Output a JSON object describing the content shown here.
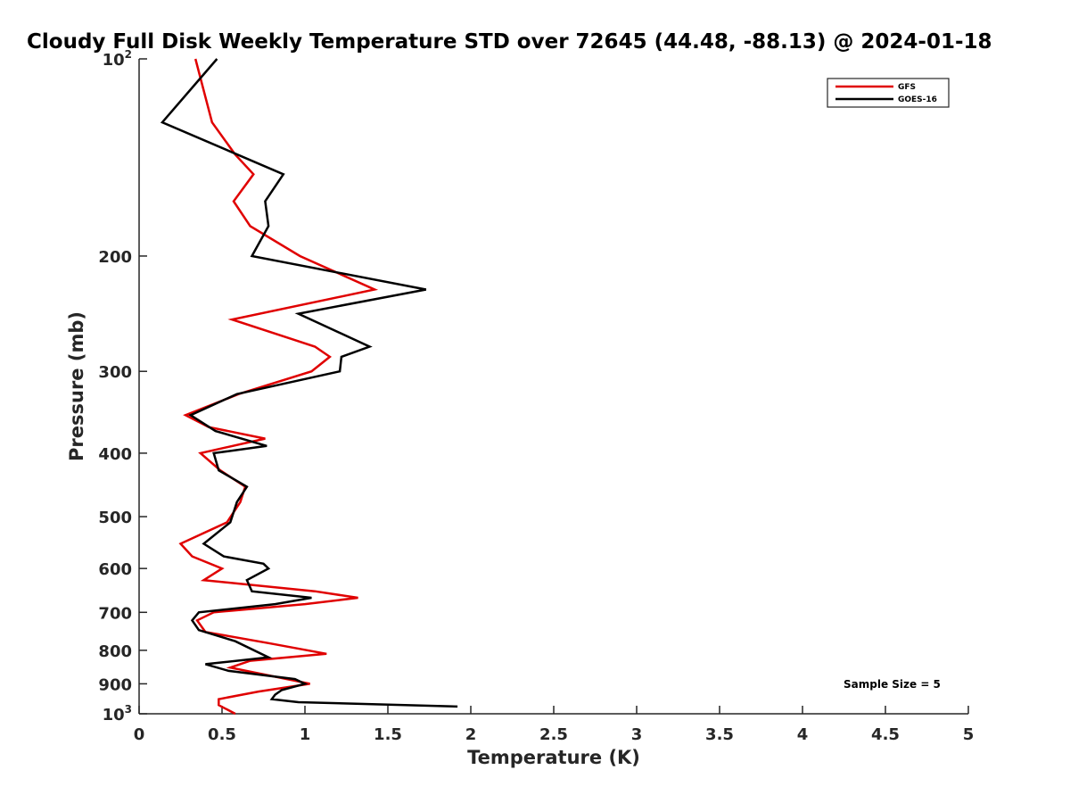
{
  "chart_data": {
    "type": "line",
    "title": "Cloudy Full Disk Weekly Temperature STD over 72645 (44.48, -88.13) @ 2024-01-18",
    "xlabel": "Temperature (K)",
    "ylabel": "Pressure (mb)",
    "xlim": [
      0,
      5
    ],
    "ylim": [
      100,
      1000
    ],
    "yscale": "log",
    "y_reversed": true,
    "xticks": [
      0,
      0.5,
      1,
      1.5,
      2,
      2.5,
      3,
      3.5,
      4,
      4.5,
      5
    ],
    "xtick_labels": [
      "0",
      "0.5",
      "1",
      "1.5",
      "2",
      "2.5",
      "3",
      "3.5",
      "4",
      "4.5",
      "5"
    ],
    "yticks": [
      {
        "value": 100,
        "base": "10",
        "exp": "2"
      },
      {
        "value": 200,
        "label": "200"
      },
      {
        "value": 300,
        "label": "300"
      },
      {
        "value": 400,
        "label": "400"
      },
      {
        "value": 500,
        "label": "500"
      },
      {
        "value": 600,
        "label": "600"
      },
      {
        "value": 700,
        "label": "700"
      },
      {
        "value": 800,
        "label": "800"
      },
      {
        "value": 900,
        "label": "900"
      },
      {
        "value": 1000,
        "base": "10",
        "exp": "3"
      }
    ],
    "grid": false,
    "legend_position": "top-right",
    "annotation": "Sample Size = 5",
    "series": [
      {
        "name": "GFS",
        "color": "#e00000",
        "points": [
          {
            "x": 0.34,
            "p": 100
          },
          {
            "x": 0.44,
            "p": 125
          },
          {
            "x": 0.58,
            "p": 140
          },
          {
            "x": 0.69,
            "p": 150
          },
          {
            "x": 0.57,
            "p": 165
          },
          {
            "x": 0.67,
            "p": 180
          },
          {
            "x": 0.97,
            "p": 200
          },
          {
            "x": 1.42,
            "p": 225
          },
          {
            "x": 0.56,
            "p": 250
          },
          {
            "x": 1.06,
            "p": 275
          },
          {
            "x": 1.15,
            "p": 285
          },
          {
            "x": 1.04,
            "p": 300
          },
          {
            "x": 0.6,
            "p": 325
          },
          {
            "x": 0.28,
            "p": 350
          },
          {
            "x": 0.42,
            "p": 365
          },
          {
            "x": 0.76,
            "p": 380
          },
          {
            "x": 0.37,
            "p": 400
          },
          {
            "x": 0.49,
            "p": 425
          },
          {
            "x": 0.64,
            "p": 450
          },
          {
            "x": 0.61,
            "p": 475
          },
          {
            "x": 0.53,
            "p": 510
          },
          {
            "x": 0.25,
            "p": 550
          },
          {
            "x": 0.32,
            "p": 575
          },
          {
            "x": 0.5,
            "p": 600
          },
          {
            "x": 0.39,
            "p": 625
          },
          {
            "x": 1.06,
            "p": 650
          },
          {
            "x": 1.32,
            "p": 665
          },
          {
            "x": 1.0,
            "p": 680
          },
          {
            "x": 0.45,
            "p": 700
          },
          {
            "x": 0.35,
            "p": 720
          },
          {
            "x": 0.4,
            "p": 750
          },
          {
            "x": 0.78,
            "p": 780
          },
          {
            "x": 1.13,
            "p": 810
          },
          {
            "x": 0.67,
            "p": 830
          },
          {
            "x": 0.55,
            "p": 850
          },
          {
            "x": 1.03,
            "p": 900
          },
          {
            "x": 0.72,
            "p": 925
          },
          {
            "x": 0.48,
            "p": 950
          },
          {
            "x": 0.48,
            "p": 970
          },
          {
            "x": 0.58,
            "p": 1000
          }
        ]
      },
      {
        "name": "GOES-16",
        "color": "#000000",
        "points": [
          {
            "x": 0.47,
            "p": 100
          },
          {
            "x": 0.14,
            "p": 125
          },
          {
            "x": 0.87,
            "p": 150
          },
          {
            "x": 0.76,
            "p": 165
          },
          {
            "x": 0.78,
            "p": 180
          },
          {
            "x": 0.68,
            "p": 200
          },
          {
            "x": 1.73,
            "p": 225
          },
          {
            "x": 0.96,
            "p": 245
          },
          {
            "x": 1.39,
            "p": 275
          },
          {
            "x": 1.22,
            "p": 285
          },
          {
            "x": 1.21,
            "p": 300
          },
          {
            "x": 0.59,
            "p": 325
          },
          {
            "x": 0.31,
            "p": 350
          },
          {
            "x": 0.46,
            "p": 370
          },
          {
            "x": 0.77,
            "p": 390
          },
          {
            "x": 0.45,
            "p": 400
          },
          {
            "x": 0.48,
            "p": 425
          },
          {
            "x": 0.65,
            "p": 450
          },
          {
            "x": 0.59,
            "p": 475
          },
          {
            "x": 0.55,
            "p": 510
          },
          {
            "x": 0.39,
            "p": 550
          },
          {
            "x": 0.51,
            "p": 575
          },
          {
            "x": 0.75,
            "p": 590
          },
          {
            "x": 0.78,
            "p": 600
          },
          {
            "x": 0.65,
            "p": 625
          },
          {
            "x": 0.68,
            "p": 650
          },
          {
            "x": 1.04,
            "p": 665
          },
          {
            "x": 0.82,
            "p": 680
          },
          {
            "x": 0.36,
            "p": 700
          },
          {
            "x": 0.32,
            "p": 720
          },
          {
            "x": 0.36,
            "p": 745
          },
          {
            "x": 0.58,
            "p": 775
          },
          {
            "x": 0.78,
            "p": 820
          },
          {
            "x": 0.4,
            "p": 840
          },
          {
            "x": 0.54,
            "p": 860
          },
          {
            "x": 0.94,
            "p": 885
          },
          {
            "x": 1.0,
            "p": 900
          },
          {
            "x": 0.86,
            "p": 920
          },
          {
            "x": 0.82,
            "p": 935
          },
          {
            "x": 0.8,
            "p": 950
          },
          {
            "x": 0.96,
            "p": 960
          },
          {
            "x": 1.92,
            "p": 975
          }
        ]
      }
    ]
  }
}
